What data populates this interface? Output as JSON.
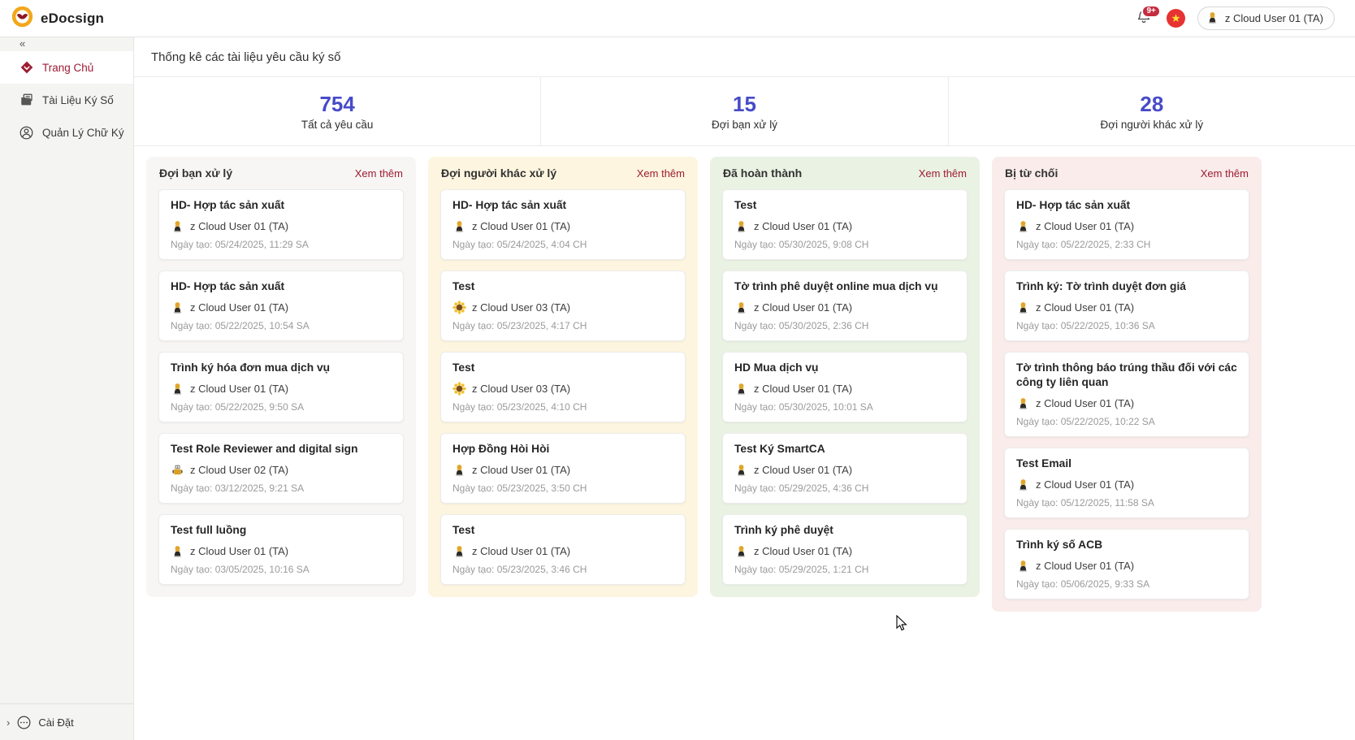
{
  "app": {
    "name": "eDocsign"
  },
  "topbar": {
    "notification_badge": "9+",
    "user_name": "z Cloud User 01 (TA)"
  },
  "sidebar": {
    "items": [
      {
        "label": "Trang Chủ",
        "icon": "home-icon",
        "active": true
      },
      {
        "label": "Tài Liệu Ký Số",
        "icon": "document-icon",
        "active": false
      },
      {
        "label": "Quản Lý Chữ Ký",
        "icon": "signature-user-icon",
        "active": false
      }
    ],
    "footer": {
      "label": "Cài Đặt",
      "icon": "ellipsis-icon"
    }
  },
  "main": {
    "title": "Thống kê các tài liệu yêu cầu ký số",
    "stats": [
      {
        "value": "754",
        "label": "Tất cả yêu cầu"
      },
      {
        "value": "15",
        "label": "Đợi bạn xử lý"
      },
      {
        "value": "28",
        "label": "Đợi người khác xử lý"
      }
    ],
    "see_more_label": "Xem thêm",
    "date_prefix": "Ngày tạo:",
    "columns": [
      {
        "title": "Đợi bạn xử lý",
        "theme": "gray",
        "cards": [
          {
            "title": "HD- Hợp tác sản xuất",
            "user": "z Cloud User 01 (TA)",
            "avatar": "user01",
            "date": "Ngày tạo: 05/24/2025, 11:29 SA"
          },
          {
            "title": "HD- Hợp tác sản xuất",
            "user": "z Cloud User 01 (TA)",
            "avatar": "user01",
            "date": "Ngày tạo: 05/22/2025, 10:54 SA"
          },
          {
            "title": "Trình ký hóa đơn mua dịch vụ",
            "user": "z Cloud User 01 (TA)",
            "avatar": "user01",
            "date": "Ngày tạo: 05/22/2025, 9:50 SA"
          },
          {
            "title": "Test Role Reviewer and digital sign",
            "user": "z Cloud User 02 (TA)",
            "avatar": "user02",
            "date": "Ngày tạo: 03/12/2025, 9:21 SA"
          },
          {
            "title": "Test full luồng",
            "user": "z Cloud User 01 (TA)",
            "avatar": "user01",
            "date": "Ngày tạo: 03/05/2025, 10:16 SA"
          }
        ]
      },
      {
        "title": "Đợi người khác xử lý",
        "theme": "yellow",
        "cards": [
          {
            "title": "HD- Hợp tác sản xuất",
            "user": "z Cloud User 01 (TA)",
            "avatar": "user01",
            "date": "Ngày tạo: 05/24/2025, 4:04 CH"
          },
          {
            "title": "Test",
            "user": "z Cloud User 03 (TA)",
            "avatar": "user03",
            "date": "Ngày tạo: 05/23/2025, 4:17 CH"
          },
          {
            "title": "Test",
            "user": "z Cloud User 03 (TA)",
            "avatar": "user03",
            "date": "Ngày tạo: 05/23/2025, 4:10 CH"
          },
          {
            "title": "Hợp Đồng Hòi Hòi",
            "user": "z Cloud User 01 (TA)",
            "avatar": "user01",
            "date": "Ngày tạo: 05/23/2025, 3:50 CH"
          },
          {
            "title": "Test",
            "user": "z Cloud User 01 (TA)",
            "avatar": "user01",
            "date": "Ngày tạo: 05/23/2025, 3:46 CH"
          }
        ]
      },
      {
        "title": "Đã hoàn thành",
        "theme": "green",
        "cards": [
          {
            "title": "Test",
            "user": "z Cloud User 01 (TA)",
            "avatar": "user01",
            "date": "Ngày tạo: 05/30/2025, 9:08 CH"
          },
          {
            "title": "Tờ trình phê duyệt online mua dịch vụ",
            "user": "z Cloud User 01 (TA)",
            "avatar": "user01",
            "date": "Ngày tạo: 05/30/2025, 2:36 CH"
          },
          {
            "title": "HD Mua dịch vụ",
            "user": "z Cloud User 01 (TA)",
            "avatar": "user01",
            "date": "Ngày tạo: 05/30/2025, 10:01 SA"
          },
          {
            "title": "Test Ký SmartCA",
            "user": "z Cloud User 01 (TA)",
            "avatar": "user01",
            "date": "Ngày tạo: 05/29/2025, 4:36 CH"
          },
          {
            "title": "Trình ký phê duyệt",
            "user": "z Cloud User 01 (TA)",
            "avatar": "user01",
            "date": "Ngày tạo: 05/29/2025, 1:21 CH"
          }
        ]
      },
      {
        "title": "Bị từ chối",
        "theme": "red",
        "cards": [
          {
            "title": "HD- Hợp tác sản xuất",
            "user": "z Cloud User 01 (TA)",
            "avatar": "user01",
            "date": "Ngày tạo: 05/22/2025, 2:33 CH"
          },
          {
            "title": "Trình ký: Tờ trình duyệt đơn giá",
            "user": "z Cloud User 01 (TA)",
            "avatar": "user01",
            "date": "Ngày tạo: 05/22/2025, 10:36 SA"
          },
          {
            "title": "Tờ trình thông báo trúng thầu đối với các công ty liên quan",
            "user": "z Cloud User 01 (TA)",
            "avatar": "user01",
            "date": "Ngày tạo: 05/22/2025, 10:22 SA"
          },
          {
            "title": "Test Email",
            "user": "z Cloud User 01 (TA)",
            "avatar": "user01",
            "date": "Ngày tạo: 05/12/2025, 11:58 SA"
          },
          {
            "title": "Trình ký số ACB",
            "user": "z Cloud User 01 (TA)",
            "avatar": "user01",
            "date": "Ngày tạo: 05/06/2025, 9:33 SA"
          }
        ]
      }
    ]
  },
  "colors": {
    "accent_red": "#9e1b32",
    "stat_number_blue": "#474bc8",
    "badge_red": "#c62b3e",
    "flag_red": "#e63232",
    "flag_star_yellow": "#ffdd33",
    "logo_gold": "#f2a71b",
    "logo_mark_red": "#8e1722",
    "sidebar_bg": "#f4f4f2",
    "column_bg": {
      "gray": "#f7f6f4",
      "yellow": "#fdf5df",
      "green": "#eaf2e3",
      "red": "#f9eceb"
    }
  }
}
